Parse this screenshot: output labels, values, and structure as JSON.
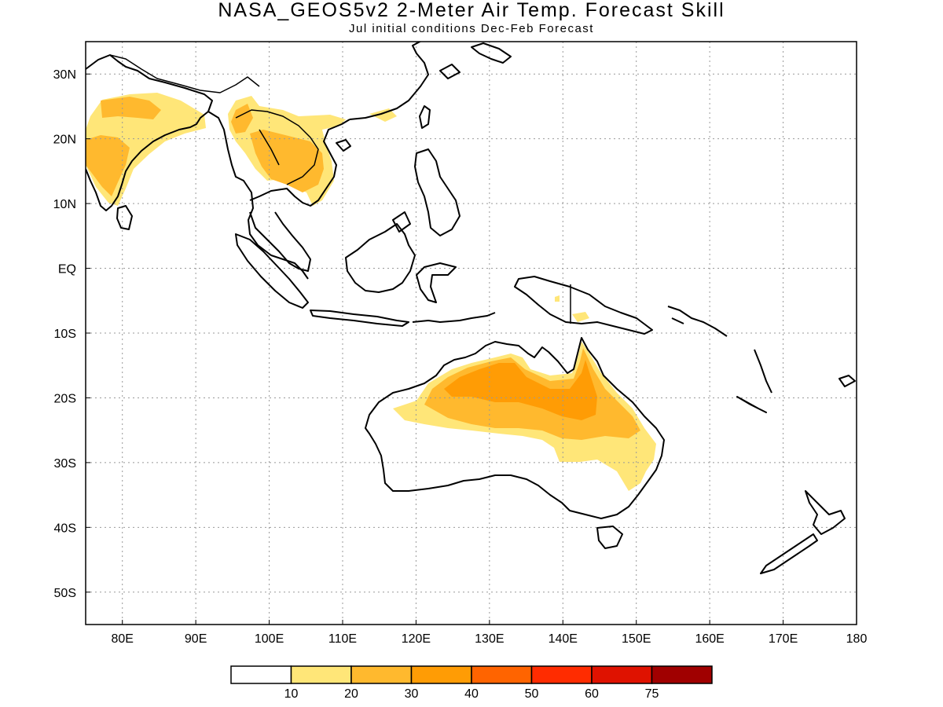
{
  "title": "NASA_GEOS5v2 2-Meter Air Temp. Forecast Skill",
  "subtitle": "Jul initial conditions  Dec-Feb Forecast",
  "map": {
    "lon_range": [
      75,
      180
    ],
    "lat_range": [
      -55,
      35
    ],
    "lon_ticks": [
      {
        "value": 80,
        "label": "80E"
      },
      {
        "value": 90,
        "label": "90E"
      },
      {
        "value": 100,
        "label": "100E"
      },
      {
        "value": 110,
        "label": "110E"
      },
      {
        "value": 120,
        "label": "120E"
      },
      {
        "value": 130,
        "label": "130E"
      },
      {
        "value": 140,
        "label": "140E"
      },
      {
        "value": 150,
        "label": "150E"
      },
      {
        "value": 160,
        "label": "160E"
      },
      {
        "value": 170,
        "label": "170E"
      },
      {
        "value": 180,
        "label": "180"
      }
    ],
    "lat_ticks": [
      {
        "value": 30,
        "label": "30N"
      },
      {
        "value": 20,
        "label": "20N"
      },
      {
        "value": 10,
        "label": "10N"
      },
      {
        "value": 0,
        "label": "EQ"
      },
      {
        "value": -10,
        "label": "10S"
      },
      {
        "value": -20,
        "label": "20S"
      },
      {
        "value": -30,
        "label": "30S"
      },
      {
        "value": -40,
        "label": "40S"
      },
      {
        "value": -50,
        "label": "50S"
      }
    ]
  },
  "colorbar": {
    "colors": [
      "#ffffff",
      "#ffe678",
      "#ffb92e",
      "#ff9c05",
      "#ff6400",
      "#ff2c00",
      "#df1200",
      "#a00000"
    ],
    "labels": [
      "10",
      "20",
      "30",
      "40",
      "50",
      "60",
      "75"
    ]
  }
}
